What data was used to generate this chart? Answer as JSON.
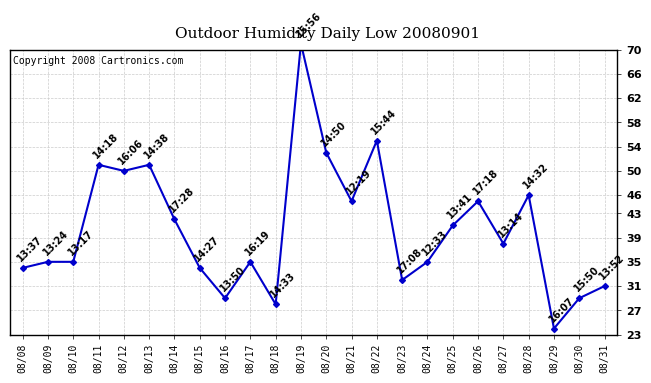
{
  "title": "Outdoor Humidity Daily Low 20080901",
  "copyright": "Copyright 2008 Cartronics.com",
  "dates": [
    "08/08",
    "08/09",
    "08/10",
    "08/11",
    "08/12",
    "08/13",
    "08/14",
    "08/15",
    "08/16",
    "08/17",
    "08/18",
    "08/19",
    "08/20",
    "08/21",
    "08/22",
    "08/23",
    "08/24",
    "08/25",
    "08/26",
    "08/27",
    "08/28",
    "08/29",
    "08/30",
    "08/31"
  ],
  "values": [
    34,
    35,
    35,
    51,
    50,
    51,
    42,
    34,
    29,
    35,
    28,
    71,
    53,
    45,
    55,
    32,
    35,
    41,
    45,
    38,
    46,
    24,
    29,
    31
  ],
  "labels": [
    "13:37",
    "13:24",
    "13:17",
    "14:18",
    "16:06",
    "14:38",
    "17:28",
    "14:27",
    "13:50",
    "16:19",
    "14:33",
    "15:56",
    "14:50",
    "12:19",
    "15:44",
    "17:08",
    "12:33",
    "13:41",
    "17:18",
    "13:14",
    "14:32",
    "16:07",
    "15:50",
    "13:52"
  ],
  "line_color": "#0000cc",
  "marker_color": "#0000cc",
  "bg_color": "#ffffff",
  "plot_bg_color": "#ffffff",
  "grid_color": "#cccccc",
  "ylim_min": 23,
  "ylim_max": 70,
  "yticks": [
    23,
    27,
    31,
    35,
    39,
    43,
    46,
    50,
    54,
    58,
    62,
    66,
    70
  ],
  "title_fontsize": 11,
  "label_fontsize": 7,
  "copyright_fontsize": 7
}
